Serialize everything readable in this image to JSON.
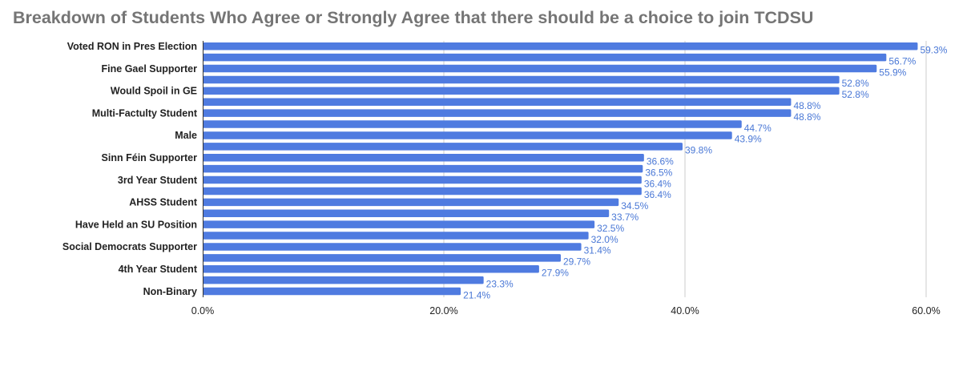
{
  "chart_data": {
    "type": "bar",
    "orientation": "horizontal",
    "title": "Breakdown of Students Who Agree or Strongly Agree that there should be a choice to join TCDSU",
    "xlabel": "",
    "ylabel": "",
    "xlim": [
      0,
      0.6
    ],
    "x_ticks": [
      0,
      0.2,
      0.4,
      0.6
    ],
    "x_tick_labels": [
      "0.0%",
      "20.0%",
      "40.0%",
      "60.0%"
    ],
    "grid": "vertical",
    "colors": {
      "bar": "#4f7be0",
      "value_label": "#4a78d6",
      "grid": "#cccccc",
      "title": "#757575"
    },
    "bars": [
      {
        "category": "Voted RON in Pres Election",
        "value": 0.593,
        "label": "59.3%"
      },
      {
        "category": "",
        "value": 0.567,
        "label": "56.7%"
      },
      {
        "category": "Fine Gael Supporter",
        "value": 0.559,
        "label": "55.9%"
      },
      {
        "category": "",
        "value": 0.528,
        "label": "52.8%"
      },
      {
        "category": "Would Spoil in GE",
        "value": 0.528,
        "label": "52.8%"
      },
      {
        "category": "",
        "value": 0.488,
        "label": "48.8%"
      },
      {
        "category": "Multi-Factulty Student",
        "value": 0.488,
        "label": "48.8%"
      },
      {
        "category": "",
        "value": 0.447,
        "label": "44.7%"
      },
      {
        "category": "Male",
        "value": 0.439,
        "label": "43.9%"
      },
      {
        "category": "",
        "value": 0.398,
        "label": "39.8%"
      },
      {
        "category": "Sinn Féin Supporter",
        "value": 0.366,
        "label": "36.6%"
      },
      {
        "category": "",
        "value": 0.365,
        "label": "36.5%"
      },
      {
        "category": "3rd Year Student",
        "value": 0.364,
        "label": "36.4%"
      },
      {
        "category": "",
        "value": 0.364,
        "label": "36.4%"
      },
      {
        "category": "AHSS Student",
        "value": 0.345,
        "label": "34.5%"
      },
      {
        "category": "",
        "value": 0.337,
        "label": "33.7%"
      },
      {
        "category": "Have Held an SU Position",
        "value": 0.325,
        "label": "32.5%"
      },
      {
        "category": "",
        "value": 0.32,
        "label": "32.0%"
      },
      {
        "category": "Social Democrats Supporter",
        "value": 0.314,
        "label": "31.4%"
      },
      {
        "category": "",
        "value": 0.297,
        "label": "29.7%"
      },
      {
        "category": "4th Year Student",
        "value": 0.279,
        "label": "27.9%"
      },
      {
        "category": "",
        "value": 0.233,
        "label": "23.3%"
      },
      {
        "category": "Non-Binary",
        "value": 0.214,
        "label": "21.4%"
      }
    ]
  }
}
